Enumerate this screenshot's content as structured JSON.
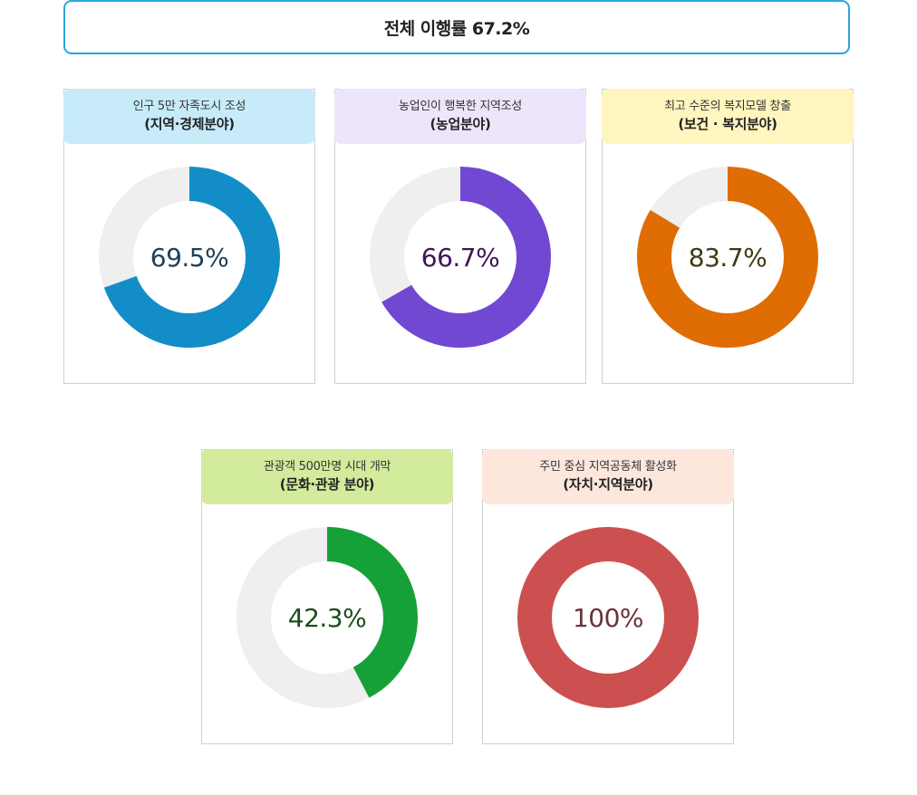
{
  "overall": {
    "label": "전체 이행률 67.2%"
  },
  "chart_data": [
    {
      "type": "pie",
      "subtitle": "인구 5만 자족도시 조성",
      "title": "(지역·경제분야)",
      "value": 69.5,
      "max": 100,
      "display": "69.5%",
      "colors": {
        "header": "#c8ebf9",
        "ring": "#138dc8",
        "track": "#efefef",
        "text": "#1f4058"
      }
    },
    {
      "type": "pie",
      "subtitle": "농업인이 행복한 지역조성",
      "title": "(농업분야)",
      "value": 66.7,
      "max": 100,
      "display": "66.7%",
      "colors": {
        "header": "#ede6fa",
        "ring": "#7148d2",
        "track": "#efefef",
        "text": "#3e1458"
      }
    },
    {
      "type": "pie",
      "subtitle": "최고 수준의 복지모델 창출",
      "title": "(보건 · 복지분야)",
      "value": 83.7,
      "max": 100,
      "display": "83.7%",
      "colors": {
        "header": "#fff5bf",
        "ring": "#e06c04",
        "track": "#efefef",
        "text": "#3f3a10"
      }
    },
    {
      "type": "pie",
      "subtitle": "관광객 500만명 시대 개막",
      "title": "(문화·관광 분야)",
      "value": 42.3,
      "max": 100,
      "display": "42.3%",
      "colors": {
        "header": "#d2eb9c",
        "ring": "#16a038",
        "track": "#efefef",
        "text": "#1d4d1d"
      }
    },
    {
      "type": "pie",
      "subtitle": "주민 중심 지역공동체 활성화",
      "title": "(자치·지역분야)",
      "value": 100,
      "max": 100,
      "display": "100%",
      "colors": {
        "header": "#fde7dc",
        "ring": "#cc5050",
        "track": "#efefef",
        "text": "#6b3333"
      }
    }
  ]
}
